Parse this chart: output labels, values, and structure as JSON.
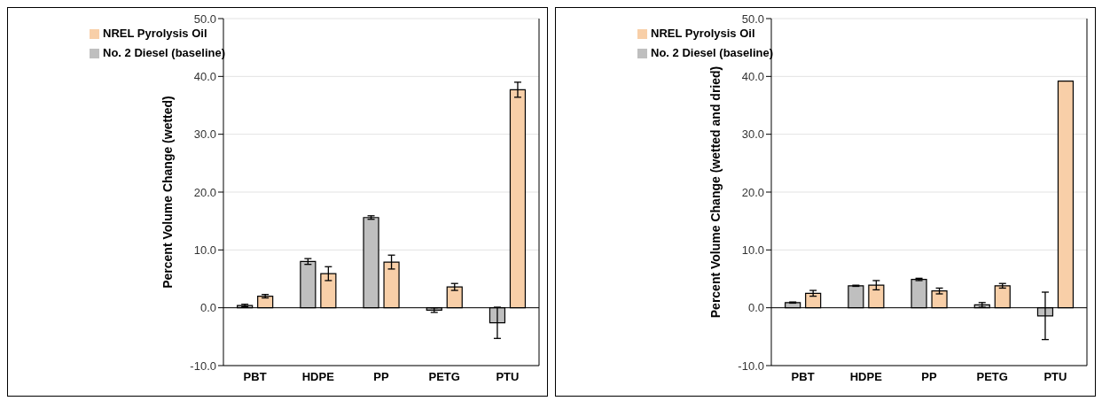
{
  "chart_data": [
    {
      "type": "bar",
      "ylabel": "Percent Volume Change (wetted)",
      "categories": [
        "PBT",
        "HDPE",
        "PP",
        "PETG",
        "PTU"
      ],
      "series": [
        {
          "name": "No. 2 Diesel (baseline)",
          "color": "#bfbfbf",
          "values": [
            0.4,
            8.0,
            15.6,
            -0.4,
            -2.6
          ],
          "errors": [
            0.2,
            0.5,
            0.3,
            0.4,
            2.7
          ]
        },
        {
          "name": "NREL Pyrolysis Oil",
          "color": "#f8cfa8",
          "values": [
            2.0,
            5.9,
            7.9,
            3.6,
            37.7
          ],
          "errors": [
            0.3,
            1.2,
            1.2,
            0.6,
            1.3
          ]
        }
      ],
      "ylim": [
        -10,
        50
      ],
      "yticks": [
        {
          "value": -10,
          "label": "-10.0"
        },
        {
          "value": 0,
          "label": "0.0"
        },
        {
          "value": 10,
          "label": "10.0"
        },
        {
          "value": 20,
          "label": "20.0"
        },
        {
          "value": 30,
          "label": "30.0"
        },
        {
          "value": 40,
          "label": "40.0"
        },
        {
          "value": 50,
          "label": "50.0"
        }
      ],
      "grid": "y",
      "legend": "top left"
    },
    {
      "type": "bar",
      "ylabel": "Percent Volume Change (wetted and dried)",
      "categories": [
        "PBT",
        "HDPE",
        "PP",
        "PETG",
        "PTU"
      ],
      "series": [
        {
          "name": "No. 2 Diesel (baseline)",
          "color": "#bfbfbf",
          "values": [
            0.9,
            3.8,
            4.9,
            0.5,
            -1.4
          ],
          "errors": [
            0.1,
            0.1,
            0.2,
            0.4,
            4.1
          ]
        },
        {
          "name": "NREL Pyrolysis Oil",
          "color": "#f8cfa8",
          "values": [
            2.5,
            3.9,
            2.9,
            3.8,
            39.2
          ],
          "errors": [
            0.5,
            0.8,
            0.5,
            0.4,
            null
          ]
        }
      ],
      "ylim": [
        -10,
        50
      ],
      "yticks": [
        {
          "value": -10,
          "label": "-10.0"
        },
        {
          "value": 0,
          "label": "0.0"
        },
        {
          "value": 10,
          "label": "10.0"
        },
        {
          "value": 20,
          "label": "20.0"
        },
        {
          "value": 30,
          "label": "30.0"
        },
        {
          "value": 40,
          "label": "40.0"
        },
        {
          "value": 50,
          "label": "50.0"
        }
      ],
      "grid": "y",
      "legend": "top left"
    }
  ]
}
